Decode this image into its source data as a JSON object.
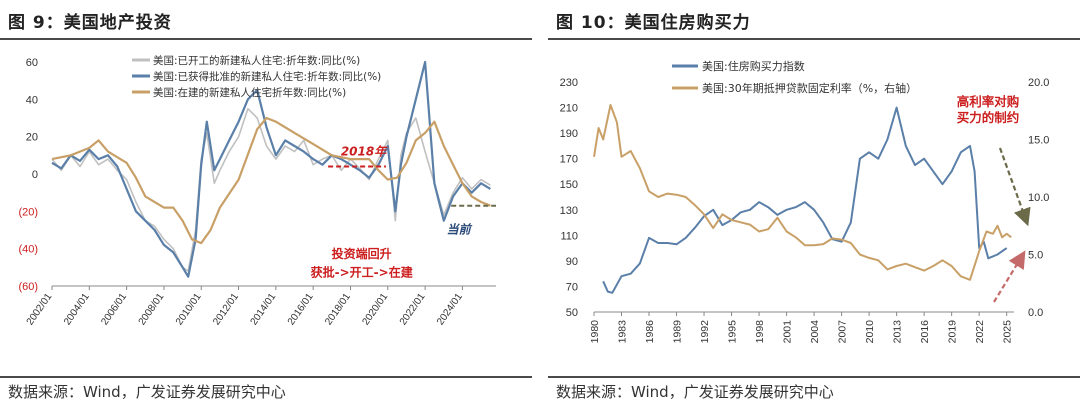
{
  "charts": [
    {
      "title": "图 9：美国地产投资",
      "source": "数据来源：Wind，广发证券发展研究中心"
    },
    {
      "title": "图 10：美国住房购买力",
      "source": "数据来源：Wind，广发证券发展研究中心"
    }
  ],
  "colors": {
    "gray": "#c0c0c0",
    "blue": "#5a7fa8",
    "gold": "#c8a067",
    "red": "#cc1f1f",
    "navy": "#2a4a7a",
    "olive": "#6b6b4a",
    "rose": "#c46a6a"
  },
  "chart_data": [
    {
      "type": "line",
      "title": "",
      "xlabel": "",
      "ylabel": "",
      "ylim": [
        -60,
        60
      ],
      "yticks": [
        60,
        40,
        20,
        0,
        -20,
        -40,
        -60
      ],
      "ytick_labels": [
        "60",
        "40",
        "20",
        "0",
        "(20)",
        "(40)",
        "(60)"
      ],
      "xlim": [
        2002.0,
        2025.8
      ],
      "xtick_labels": [
        "2002/01",
        "2004/01",
        "2006/01",
        "2008/01",
        "2010/01",
        "2012/01",
        "2014/01",
        "2016/01",
        "2018/01",
        "2020/01",
        "2022/01",
        "2024/01"
      ],
      "xtick_years": [
        2002,
        2004,
        2006,
        2008,
        2010,
        2012,
        2014,
        2016,
        2018,
        2020,
        2022,
        2024
      ],
      "legend": "top-left",
      "grid": false,
      "series": [
        {
          "name": "美国:已开工的新建私人住宅:折年数:同比(%)",
          "color": "gray",
          "x": [
            2002.0,
            2002.5,
            2003.0,
            2003.5,
            2004.0,
            2004.5,
            2005.0,
            2005.5,
            2006.0,
            2006.5,
            2007.0,
            2007.5,
            2008.0,
            2008.5,
            2009.0,
            2009.3,
            2009.7,
            2010.0,
            2010.3,
            2010.7,
            2011.0,
            2011.5,
            2012.0,
            2012.5,
            2013.0,
            2013.5,
            2014.0,
            2014.5,
            2015.0,
            2015.5,
            2016.0,
            2016.5,
            2017.0,
            2017.5,
            2018.0,
            2018.5,
            2019.0,
            2019.5,
            2020.0,
            2020.4,
            2020.7,
            2021.0,
            2021.5,
            2022.0,
            2022.5,
            2023.0,
            2023.5,
            2024.0,
            2024.5,
            2025.0,
            2025.5
          ],
          "y": [
            8,
            2,
            10,
            4,
            12,
            5,
            8,
            2,
            -3,
            -15,
            -25,
            -28,
            -35,
            -40,
            -50,
            -52,
            -30,
            8,
            22,
            -5,
            2,
            12,
            20,
            35,
            30,
            15,
            8,
            15,
            12,
            18,
            5,
            8,
            10,
            2,
            8,
            3,
            -3,
            8,
            18,
            -25,
            10,
            22,
            30,
            12,
            -5,
            -22,
            -10,
            -2,
            -8,
            -3,
            -6
          ]
        },
        {
          "name": "美国:已获得批准的新建私人住宅:折年数:同比(%)",
          "color": "blue",
          "x": [
            2002.0,
            2002.5,
            2003.0,
            2003.5,
            2004.0,
            2004.5,
            2005.0,
            2005.5,
            2006.0,
            2006.5,
            2007.0,
            2007.5,
            2008.0,
            2008.5,
            2009.0,
            2009.3,
            2009.7,
            2010.0,
            2010.3,
            2010.7,
            2011.0,
            2011.5,
            2012.0,
            2012.5,
            2013.0,
            2013.5,
            2014.0,
            2014.5,
            2015.0,
            2015.5,
            2016.0,
            2016.5,
            2017.0,
            2017.5,
            2018.0,
            2018.5,
            2019.0,
            2019.5,
            2020.0,
            2020.4,
            2020.7,
            2021.0,
            2021.5,
            2022.0,
            2022.5,
            2023.0,
            2023.5,
            2024.0,
            2024.5,
            2025.0,
            2025.5
          ],
          "y": [
            6,
            3,
            10,
            7,
            13,
            8,
            10,
            4,
            -8,
            -20,
            -25,
            -30,
            -38,
            -42,
            -50,
            -55,
            -35,
            5,
            28,
            2,
            8,
            18,
            28,
            40,
            45,
            25,
            10,
            18,
            15,
            12,
            8,
            5,
            10,
            8,
            5,
            2,
            -2,
            5,
            15,
            -20,
            5,
            20,
            40,
            60,
            -5,
            -25,
            -12,
            -5,
            -10,
            -5,
            -8
          ]
        },
        {
          "name": "美国:在建的新建私人住宅折年数:同比(%)",
          "color": "gold",
          "x": [
            2002.0,
            2003.0,
            2004.0,
            2004.5,
            2005.0,
            2006.0,
            2006.5,
            2007.0,
            2008.0,
            2008.5,
            2009.0,
            2009.5,
            2010.0,
            2010.5,
            2011.0,
            2012.0,
            2013.0,
            2013.5,
            2014.0,
            2015.0,
            2016.0,
            2017.0,
            2018.0,
            2019.0,
            2019.5,
            2020.0,
            2020.5,
            2021.0,
            2021.5,
            2022.0,
            2022.5,
            2023.0,
            2023.5,
            2024.0,
            2024.5,
            2025.0,
            2025.5
          ],
          "y": [
            8,
            10,
            14,
            18,
            12,
            6,
            -2,
            -12,
            -18,
            -18,
            -25,
            -35,
            -37,
            -30,
            -18,
            -3,
            24,
            30,
            28,
            22,
            16,
            10,
            8,
            8,
            2,
            -3,
            -2,
            6,
            18,
            22,
            28,
            15,
            5,
            -5,
            -12,
            -15,
            -17
          ]
        }
      ],
      "annotations": [
        {
          "text": "2018年",
          "color": "red",
          "x": 2018.7,
          "y": 10
        },
        {
          "text": "当前",
          "color": "navy",
          "x": 2023.8,
          "y": -32
        },
        {
          "text": "投资端回升",
          "color": "red",
          "x": 2018.6,
          "y": -45
        },
        {
          "text": "获批->开工->在建",
          "color": "red",
          "x": 2018.6,
          "y": -55
        }
      ]
    },
    {
      "type": "line",
      "title": "",
      "xlabel": "",
      "ylabel": "",
      "ylim_left": [
        50,
        230
      ],
      "yticks_left": [
        230,
        210,
        190,
        170,
        150,
        130,
        110,
        90,
        70,
        50
      ],
      "ylim_right": [
        0.0,
        20.0
      ],
      "yticks_right": [
        "20.0",
        "15.0",
        "10.0",
        "5.0",
        "0.0"
      ],
      "xlim": [
        1980,
        2025.8
      ],
      "xtick_labels": [
        "1980",
        "1983",
        "1986",
        "1989",
        "1992",
        "1995",
        "1998",
        "2001",
        "2004",
        "2007",
        "2010",
        "2013",
        "2016",
        "2019",
        "2022",
        "2025"
      ],
      "legend": "top-left",
      "grid": false,
      "series": [
        {
          "name": "美国:住房购买力指数",
          "color": "blue",
          "axis": "left",
          "x": [
            1981.0,
            1981.5,
            1982.0,
            1983.0,
            1984.0,
            1985.0,
            1986.0,
            1987.0,
            1988.0,
            1989.0,
            1990.0,
            1991.0,
            1992.0,
            1993.0,
            1994.0,
            1995.0,
            1996.0,
            1997.0,
            1998.0,
            1999.0,
            2000.0,
            2001.0,
            2002.0,
            2003.0,
            2004.0,
            2005.0,
            2006.0,
            2007.0,
            2008.0,
            2009.0,
            2010.0,
            2011.0,
            2012.0,
            2013.0,
            2014.0,
            2015.0,
            2016.0,
            2017.0,
            2018.0,
            2019.0,
            2020.0,
            2021.0,
            2021.5,
            2022.0,
            2022.5,
            2023.0,
            2024.0,
            2025.0
          ],
          "y": [
            74,
            66,
            65,
            78,
            80,
            88,
            108,
            104,
            104,
            103,
            108,
            116,
            125,
            130,
            118,
            122,
            128,
            130,
            136,
            132,
            126,
            130,
            132,
            136,
            130,
            120,
            107,
            105,
            120,
            170,
            175,
            170,
            185,
            210,
            180,
            165,
            170,
            160,
            150,
            160,
            175,
            180,
            160,
            100,
            105,
            92,
            95,
            100
          ]
        },
        {
          "name": "美国:30年期抵押贷款固定利率（%，右轴）",
          "color": "gold",
          "axis": "right",
          "x": [
            1980.0,
            1980.5,
            1981.0,
            1981.8,
            1982.5,
            1983.0,
            1984.0,
            1985.0,
            1986.0,
            1987.0,
            1988.0,
            1989.0,
            1990.0,
            1991.0,
            1992.0,
            1993.0,
            1994.0,
            1995.0,
            1996.0,
            1997.0,
            1998.0,
            1999.0,
            2000.0,
            2001.0,
            2002.0,
            2003.0,
            2004.0,
            2005.0,
            2006.0,
            2007.0,
            2008.0,
            2009.0,
            2010.0,
            2011.0,
            2012.0,
            2013.0,
            2014.0,
            2015.0,
            2016.0,
            2017.0,
            2018.0,
            2019.0,
            2020.0,
            2021.0,
            2022.0,
            2022.8,
            2023.5,
            2024.0,
            2024.5,
            2025.0,
            2025.5
          ],
          "y": [
            13.5,
            16.0,
            15.0,
            18.0,
            16.5,
            13.5,
            14.0,
            12.5,
            10.5,
            10.0,
            10.3,
            10.2,
            10.0,
            9.3,
            8.5,
            7.3,
            8.5,
            8.0,
            7.8,
            7.6,
            7.0,
            7.2,
            8.2,
            7.0,
            6.5,
            5.8,
            5.8,
            5.9,
            6.4,
            6.3,
            6.0,
            5.0,
            4.7,
            4.5,
            3.7,
            4.0,
            4.2,
            3.9,
            3.6,
            4.0,
            4.5,
            4.0,
            3.1,
            2.8,
            5.3,
            7.0,
            6.8,
            7.5,
            6.5,
            6.8,
            6.5
          ]
        }
      ],
      "annotations": [
        {
          "text": "高利率对购",
          "color": "red",
          "x": 2019.0,
          "y": 195
        },
        {
          "text": "买力的制约",
          "color": "red",
          "x": 2019.0,
          "y": 185
        }
      ]
    }
  ]
}
